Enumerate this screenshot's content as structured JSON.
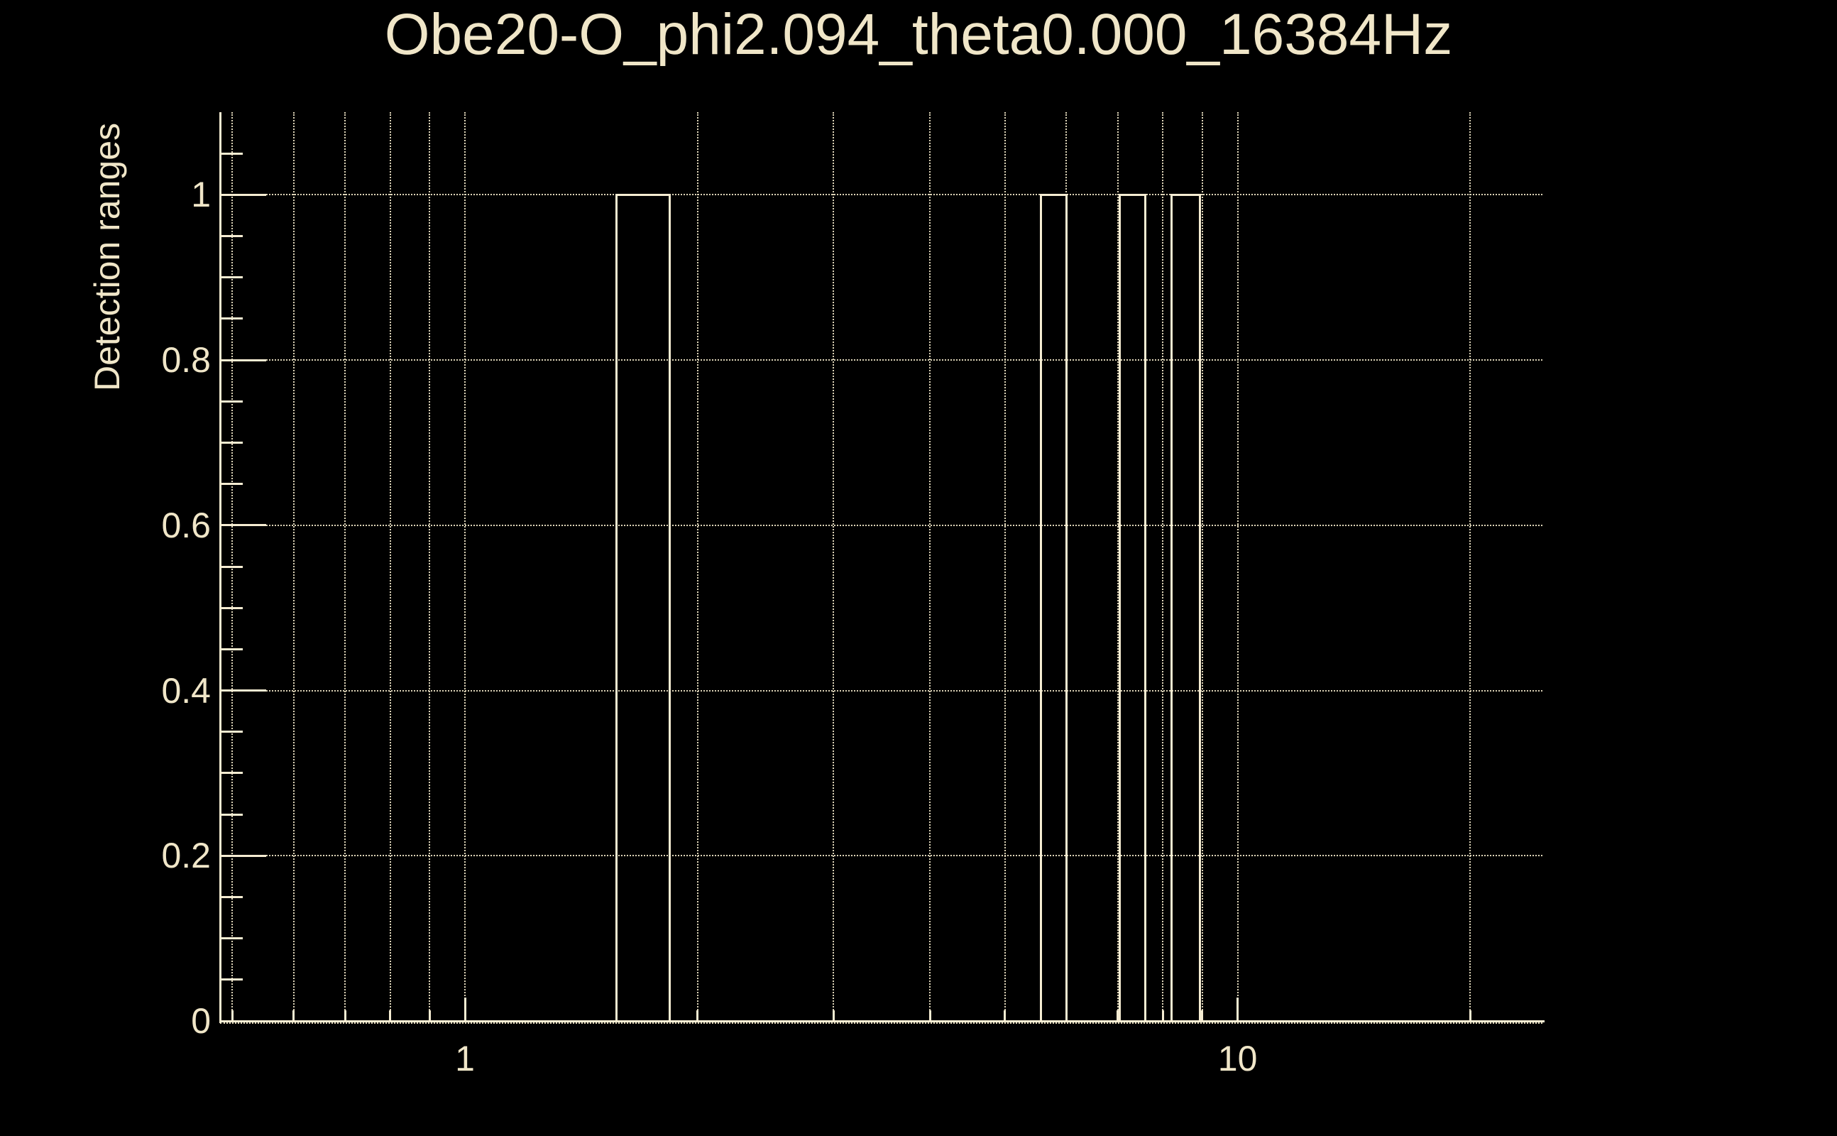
{
  "chart_data": {
    "type": "bar",
    "subtype": "detection-range-step-outline",
    "title": "Obe20-O_phi2.094_theta0.000_16384Hz",
    "xlabel": "",
    "ylabel": "Detection ranges",
    "x_scale": "log",
    "y_scale": "linear",
    "xlim": [
      0.482,
      24.8
    ],
    "ylim": [
      0,
      1.1
    ],
    "grid": "dotted",
    "legend_position": "none",
    "x_axis": {
      "major_ticks": [
        1,
        10
      ],
      "major_tick_labels": [
        "1",
        "10"
      ],
      "minor_ticks": [
        0.5,
        0.6,
        0.7,
        0.8,
        0.9,
        2,
        3,
        4,
        5,
        6,
        7,
        8,
        9,
        20
      ],
      "gridline_values": [
        0.5,
        0.6,
        0.7,
        0.8,
        0.9,
        1,
        2,
        3,
        4,
        5,
        6,
        7,
        8,
        9,
        10,
        20
      ]
    },
    "y_axis": {
      "major_ticks": [
        0,
        0.2,
        0.4,
        0.6,
        0.8,
        1
      ],
      "major_tick_labels": [
        "0",
        "0.2",
        "0.4",
        "0.6",
        "0.8",
        "1"
      ],
      "minor_ticks": [
        0.05,
        0.1,
        0.15,
        0.25,
        0.3,
        0.35,
        0.45,
        0.5,
        0.55,
        0.65,
        0.7,
        0.75,
        0.85,
        0.9,
        0.95,
        1.05
      ],
      "gridline_values": [
        0,
        0.2,
        0.4,
        0.6,
        0.8,
        1
      ]
    },
    "series": [
      {
        "name": "detection-ranges",
        "level": 1,
        "baseline": 0,
        "ranges_x": [
          [
            1.57,
            1.84
          ],
          [
            5.56,
            6.0
          ],
          [
            7.03,
            7.6
          ],
          [
            8.22,
            8.93
          ]
        ]
      }
    ],
    "colors": {
      "background": "#000000",
      "foreground": "#F0E6C8",
      "line": "#F5ECD2",
      "grid": "#F0E6C8"
    }
  }
}
